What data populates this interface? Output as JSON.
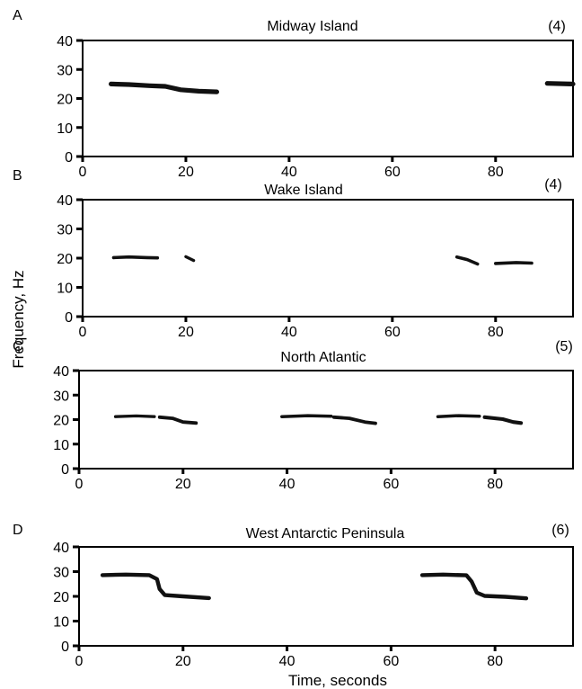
{
  "figure": {
    "ylabel": "Frequency, Hz",
    "xlabel": "Time, seconds"
  },
  "chart_data": [
    {
      "type": "spectrogram",
      "panel_label": "A",
      "title": "Midway Island",
      "note": "(4)",
      "xlim": [
        0,
        95
      ],
      "ylim": [
        0,
        40
      ],
      "xticks": [
        0,
        20,
        40,
        60,
        80
      ],
      "yticks": [
        0,
        10,
        20,
        30,
        40
      ],
      "grid": false,
      "series": [
        {
          "points": [
            [
              5.5,
              25
            ],
            [
              9,
              24.8
            ],
            [
              13,
              24.4
            ],
            [
              16,
              24.2
            ],
            [
              19,
              23
            ],
            [
              22.5,
              22.5
            ],
            [
              26,
              22.3
            ]
          ],
          "thickness": 1.6
        },
        {
          "points": [
            [
              90,
              25.2
            ],
            [
              95,
              25
            ]
          ],
          "thickness": 1.6
        }
      ]
    },
    {
      "type": "spectrogram",
      "panel_label": "B",
      "title": "Wake Island",
      "note": "(4)",
      "xlim": [
        0,
        95
      ],
      "ylim": [
        0,
        40
      ],
      "xticks": [
        0,
        20,
        40,
        60,
        80
      ],
      "yticks": [
        0,
        10,
        20,
        30,
        40
      ],
      "grid": false,
      "series": [
        {
          "points": [
            [
              6,
              20.2
            ],
            [
              9,
              20.4
            ],
            [
              12.5,
              20.2
            ],
            [
              14.5,
              20.1
            ]
          ],
          "thickness": 1.1
        },
        {
          "points": [
            [
              20,
              20.5
            ],
            [
              21.5,
              19.2
            ]
          ],
          "thickness": 1.0
        },
        {
          "points": [
            [
              72.5,
              20.4
            ],
            [
              74.5,
              19.5
            ],
            [
              76.5,
              18
            ]
          ],
          "thickness": 1.1
        },
        {
          "points": [
            [
              80,
              18.2
            ],
            [
              84,
              18.5
            ],
            [
              87,
              18.3
            ]
          ],
          "thickness": 1.1
        }
      ]
    },
    {
      "type": "spectrogram",
      "panel_label": "C",
      "title": "North Atlantic",
      "note": "(5)",
      "xlim": [
        0,
        95
      ],
      "ylim": [
        0,
        40
      ],
      "xticks": [
        0,
        20,
        40,
        60,
        80
      ],
      "yticks": [
        0,
        10,
        20,
        30,
        40
      ],
      "grid": false,
      "series": [
        {
          "points": [
            [
              7,
              21.2
            ],
            [
              11,
              21.5
            ],
            [
              14.5,
              21.2
            ]
          ],
          "thickness": 1.2
        },
        {
          "points": [
            [
              15.5,
              21
            ],
            [
              18,
              20.5
            ],
            [
              20,
              19
            ],
            [
              22.5,
              18.6
            ]
          ],
          "thickness": 1.4
        },
        {
          "points": [
            [
              39,
              21.2
            ],
            [
              44,
              21.6
            ],
            [
              48.5,
              21.4
            ]
          ],
          "thickness": 1.3
        },
        {
          "points": [
            [
              49,
              21
            ],
            [
              52,
              20.5
            ],
            [
              55,
              19
            ],
            [
              57,
              18.5
            ]
          ],
          "thickness": 1.4
        },
        {
          "points": [
            [
              69,
              21.2
            ],
            [
              73,
              21.6
            ],
            [
              77,
              21.4
            ]
          ],
          "thickness": 1.3
        },
        {
          "points": [
            [
              78,
              21
            ],
            [
              81.5,
              20.2
            ],
            [
              83.5,
              19
            ],
            [
              85,
              18.6
            ]
          ],
          "thickness": 1.5
        }
      ]
    },
    {
      "type": "spectrogram",
      "panel_label": "D",
      "title": "West Antarctic Peninsula",
      "note": "(6)",
      "xlim": [
        0,
        95
      ],
      "ylim": [
        0,
        40
      ],
      "xticks": [
        0,
        20,
        40,
        60,
        80
      ],
      "yticks": [
        0,
        10,
        20,
        30,
        40
      ],
      "grid": false,
      "series": [
        {
          "points": [
            [
              4.5,
              28.6
            ],
            [
              9,
              28.8
            ],
            [
              13.5,
              28.6
            ],
            [
              15,
              27
            ],
            [
              15.5,
              23
            ],
            [
              16.5,
              20.5
            ],
            [
              20,
              20
            ],
            [
              25,
              19.3
            ]
          ],
          "thickness": 1.6
        },
        {
          "points": [
            [
              66,
              28.6
            ],
            [
              70,
              28.8
            ],
            [
              74.5,
              28.5
            ],
            [
              75.5,
              26
            ],
            [
              76.5,
              21.5
            ],
            [
              78,
              20.2
            ],
            [
              82,
              19.8
            ],
            [
              86,
              19.2
            ]
          ],
          "thickness": 1.6
        }
      ]
    }
  ]
}
